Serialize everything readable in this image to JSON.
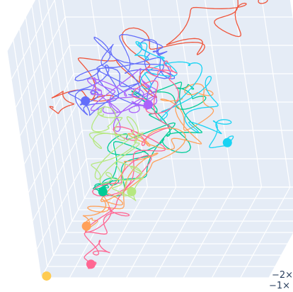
{
  "chart_data": {
    "type": "scatter",
    "dimensions": "3d",
    "title": "",
    "xlabel": "",
    "ylabel": "",
    "zlabel": "",
    "grid": true,
    "scene_background": "#e5ecf6",
    "grid_color": "#ffffff",
    "tick_labels": [
      "−2×",
      "−1×"
    ],
    "series": [
      {
        "color": "#ef553b",
        "mode": "lines",
        "start": [
          1.0,
          0.78,
          0.96
        ],
        "end": [
          0.02,
          0.52,
          0.54
        ],
        "loops": 7,
        "amplitude": 0.1
      },
      {
        "color": "#636efa",
        "mode": "lines",
        "start": [
          0.2,
          0.4,
          0.62
        ],
        "end": [
          0.4,
          0.96,
          0.62
        ],
        "loops": 9,
        "amplitude": 0.12
      },
      {
        "color": "#00cc96",
        "mode": "lines",
        "start": [
          0.3,
          0.1,
          0.34
        ],
        "end": [
          0.66,
          0.44,
          0.66
        ],
        "loops": 7,
        "amplitude": 0.12
      },
      {
        "color": "#ab63fa",
        "mode": "lines",
        "start": [
          0.54,
          0.16,
          0.7
        ],
        "end": [
          0.22,
          0.56,
          0.6
        ],
        "loops": 6,
        "amplitude": 0.1
      },
      {
        "color": "#ffa15a",
        "mode": "lines",
        "start": [
          0.2,
          0.12,
          0.18
        ],
        "end": [
          0.66,
          0.68,
          0.56
        ],
        "loops": 7,
        "amplitude": 0.11
      },
      {
        "color": "#19d3f3",
        "mode": "lines",
        "start": [
          0.84,
          0.24,
          0.5
        ],
        "end": [
          0.4,
          0.66,
          0.76
        ],
        "loops": 6,
        "amplitude": 0.1
      },
      {
        "color": "#ff6692",
        "mode": "lines",
        "start": [
          0.2,
          0.1,
          0.02
        ],
        "end": [
          0.5,
          0.72,
          0.66
        ],
        "loops": 8,
        "amplitude": 0.1
      },
      {
        "color": "#b6e880",
        "mode": "lines",
        "start": [
          0.26,
          0.7,
          0.1
        ],
        "end": [
          0.28,
          0.36,
          0.58
        ],
        "loops": 7,
        "amplitude": 0.1
      },
      {
        "color": "#fecb52",
        "mode": "markers",
        "start": [
          0.02,
          0.02,
          0.0
        ],
        "end": [
          0.02,
          0.02,
          0.0
        ],
        "loops": 0,
        "amplitude": 0.0
      }
    ]
  }
}
